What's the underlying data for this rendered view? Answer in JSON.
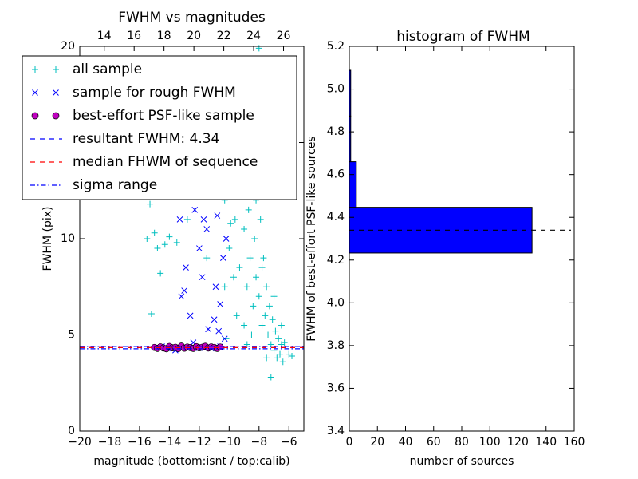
{
  "chart_data": [
    {
      "type": "scatter",
      "title": "FWHM vs magnitudes",
      "xlabel": "magnitude (bottom:isnt / top:calib)",
      "ylabel": "FWHM (pix)",
      "xlim": [
        -20,
        -5
      ],
      "xticks": [
        {
          "value": -20,
          "label": "−20"
        },
        {
          "value": -18,
          "label": "−18"
        },
        {
          "value": -16,
          "label": "−16"
        },
        {
          "value": -14,
          "label": "−14"
        },
        {
          "value": -12,
          "label": "−12"
        },
        {
          "value": -10,
          "label": "−10"
        },
        {
          "value": -8,
          "label": "−8"
        },
        {
          "value": -6,
          "label": "−6"
        }
      ],
      "x2lim": [
        12.36,
        27.36
      ],
      "x2ticks": [
        14,
        16,
        18,
        20,
        22,
        24,
        26
      ],
      "ylim": [
        0,
        20
      ],
      "yticks": [
        0,
        5,
        10,
        15,
        20
      ],
      "legend": "upper left",
      "series": [
        {
          "name": "all sample",
          "color": "#00bfbf",
          "marker": "plus",
          "x": [
            -15.5,
            -15.3,
            -15.0,
            -14.8,
            -14.6,
            -14.3,
            -14.0,
            -13.5,
            -12.8,
            -12.0,
            -11.5,
            -11.0,
            -15.2,
            -10.5,
            -10.3,
            -10.1,
            -10.0,
            -9.8,
            -9.6,
            -9.5,
            -9.3,
            -9.2,
            -9.0,
            -8.9,
            -8.8,
            -8.7,
            -8.6,
            -8.5,
            -8.4,
            -8.3,
            -8.2,
            -8.1,
            -8.0,
            -7.9,
            -7.8,
            -7.7,
            -7.6,
            -7.5,
            -7.4,
            -7.3,
            -7.2,
            -7.1,
            -7.0,
            -6.9,
            -6.8,
            -6.7,
            -6.6,
            -6.5,
            -6.4,
            -6.3,
            -6.0,
            -5.8,
            -7.2,
            -8.8,
            -9.5,
            -10.2,
            -8.0,
            -9.7,
            -7.8,
            -8.5,
            -7.5,
            -9.0,
            -8.2,
            -10.3,
            -7.0,
            -6.5,
            -9.9,
            -8.6
          ],
          "values": [
            10.0,
            11.8,
            10.3,
            9.5,
            8.2,
            9.7,
            10.1,
            9.8,
            11.0,
            12.5,
            9.0,
            13.0,
            6.1,
            14.5,
            12.0,
            16.0,
            9.5,
            13.5,
            11.0,
            17.5,
            8.5,
            12.5,
            10.5,
            15.0,
            7.5,
            11.5,
            9.0,
            13.0,
            6.5,
            10.0,
            8.0,
            18.0,
            7.0,
            11.0,
            5.5,
            9.0,
            6.0,
            7.5,
            5.0,
            6.5,
            4.5,
            5.8,
            4.2,
            5.2,
            3.8,
            4.8,
            4.0,
            5.5,
            3.6,
            4.6,
            4.0,
            3.9,
            2.8,
            4.5,
            6.0,
            4.8,
            19.9,
            8.0,
            8.5,
            5.0,
            3.8,
            5.5,
            12.0,
            7.5,
            7.0,
            4.5,
            10.8,
            14.0
          ]
        },
        {
          "name": "sample for rough FWHM",
          "color": "#0000ff",
          "marker": "x",
          "x": [
            -14.5,
            -13.3,
            -13.2,
            -13.0,
            -12.6,
            -12.3,
            -12.0,
            -11.8,
            -11.7,
            -11.5,
            -11.2,
            -11.0,
            -10.9,
            -10.8,
            -10.7,
            -10.6,
            -10.5,
            -10.4,
            -10.3,
            -10.2,
            -13.8,
            -13.0,
            -12.0,
            -11.2,
            -10.6,
            -12.9,
            -12.4,
            -11.4,
            -10.9,
            -13.6
          ],
          "values": [
            4.4,
            11.0,
            7.0,
            7.3,
            6.0,
            11.5,
            9.5,
            8.0,
            11.0,
            10.5,
            12.8,
            5.8,
            7.5,
            11.2,
            5.2,
            6.6,
            14.0,
            9.0,
            4.8,
            10.0,
            4.3,
            4.35,
            4.32,
            4.3,
            4.4,
            8.5,
            4.6,
            5.3,
            13.5,
            4.2
          ]
        },
        {
          "name": "best-effort PSF-like sample",
          "color": "#bf00bf",
          "marker": "circle",
          "x": [
            -15.0,
            -14.8,
            -14.6,
            -14.4,
            -14.2,
            -14.0,
            -13.8,
            -13.6,
            -13.4,
            -13.2,
            -13.0,
            -12.8,
            -12.6,
            -12.4,
            -12.2,
            -12.0,
            -11.8,
            -11.6,
            -11.4,
            -11.2,
            -11.0,
            -10.8,
            -10.6
          ],
          "values": [
            4.35,
            4.3,
            4.38,
            4.32,
            4.28,
            4.4,
            4.33,
            4.36,
            4.29,
            4.42,
            4.31,
            4.37,
            4.34,
            4.3,
            4.39,
            4.33,
            4.36,
            4.41,
            4.32,
            4.38,
            4.35,
            4.3,
            4.37
          ]
        }
      ],
      "lines": [
        {
          "name": "resultant FWHM: 4.34",
          "color": "#0000ff",
          "style": "dashed",
          "values": [
            4.34
          ]
        },
        {
          "name": "median FHWM of sequence",
          "color": "#ff0000",
          "style": "dashed",
          "values": [
            4.34
          ]
        },
        {
          "name": "sigma range",
          "color": "#0000ff",
          "style": "dashdot",
          "values": [
            4.28,
            4.4
          ]
        }
      ]
    },
    {
      "type": "histogram",
      "orientation": "horizontal",
      "title": "histogram of FWHM",
      "xlabel": "number of sources",
      "ylabel": "FWHM of best-effort PSF-like sources",
      "xlim": [
        0,
        160
      ],
      "xticks": [
        0,
        20,
        40,
        60,
        80,
        100,
        120,
        140,
        160
      ],
      "ylim": [
        3.4,
        5.2
      ],
      "yticks": [
        3.4,
        3.6,
        3.8,
        {
          "value": 4,
          "label": "4.0"
        },
        4.2,
        4.4,
        4.6,
        4.8,
        {
          "value": 5,
          "label": "5.0"
        },
        5.2
      ],
      "bins": [
        4.233,
        4.447,
        4.66,
        4.874,
        5.088
      ],
      "values": [
        130,
        5,
        1,
        1
      ],
      "color": "#0000ff",
      "hline": 4.34
    }
  ]
}
